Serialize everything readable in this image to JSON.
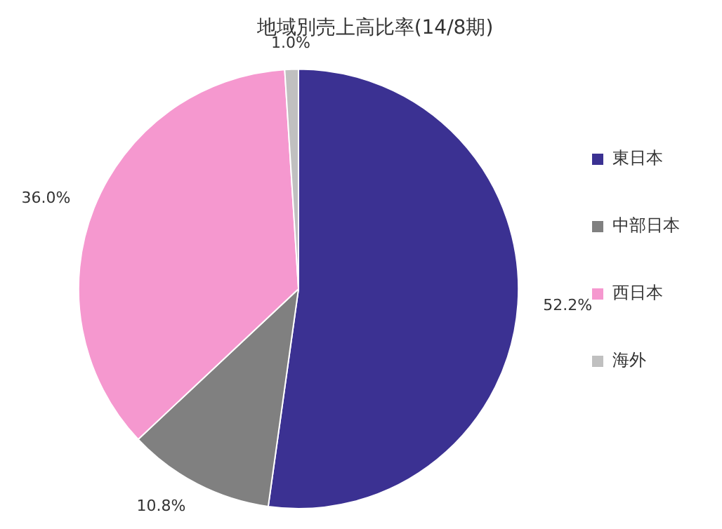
{
  "chart_data": {
    "type": "pie",
    "title": "地域別売上高比率(14/8期)",
    "categories": [
      "東日本",
      "中部日本",
      "西日本",
      "海外"
    ],
    "values": [
      52.2,
      10.8,
      36.0,
      1.0
    ],
    "value_labels": [
      "52.2%",
      "10.8%",
      "36.0%",
      "1.0%"
    ],
    "colors": [
      "#3b3192",
      "#808080",
      "#f598cf",
      "#c0c0c0"
    ],
    "legend": "right"
  }
}
